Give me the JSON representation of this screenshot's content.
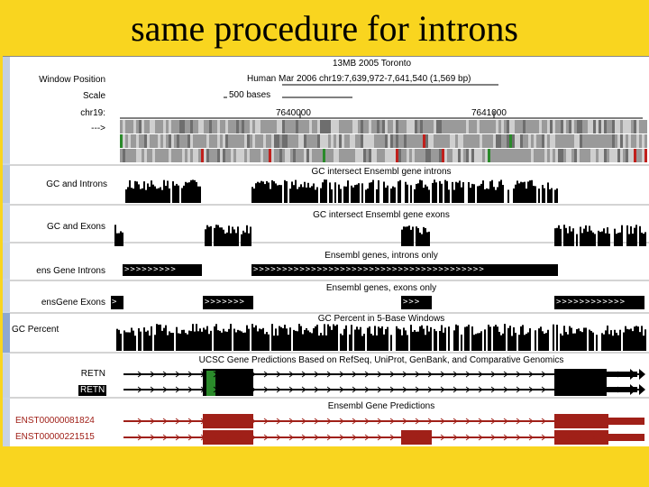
{
  "slide": {
    "title": "same procedure for introns"
  },
  "browser": {
    "header": {
      "assembly_title": "13MB 2005 Toronto",
      "position_text": "Human Mar 2006  chr19:7,639,972-7,641,540 (1,569 bp)",
      "scale_text": "500 bases",
      "coord_left": "7640000",
      "coord_right": "7641000"
    },
    "row_labels": {
      "window_position": "Window Position",
      "scale": "Scale",
      "chromosome": "chr19:",
      "strand": "--->"
    },
    "tracks": [
      {
        "label": "GC and Introns",
        "title": "GC intersect Ensembl gene introns"
      },
      {
        "label": "GC and Exons",
        "title": "GC intersect Ensembl gene exons"
      },
      {
        "label": "ens Gene Introns",
        "title": "Ensembl genes, introns only"
      },
      {
        "label": "ensGene Exons",
        "title": "Ensembl genes, exons only"
      },
      {
        "label": "GC Percent",
        "title": "GC Percent in 5-Base Windows"
      },
      {
        "label": "RETN",
        "title": "UCSC Gene Predictions Based on RefSeq, UniProt, GenBank, and Comparative Genomics"
      },
      {
        "label": "RETN",
        "title": ""
      },
      {
        "label": "ENST00000081824",
        "title": "Ensembl Gene Predictions"
      },
      {
        "label": "ENST00000221515",
        "title": ""
      }
    ],
    "arrow_glyphs": {
      "short": ">>>>>>>>>",
      "long": ">>>>>>>>>>>>>>>>>>>>>>>>>>>>>>>>>>>>>>>>",
      "mid": ">>>>>>>",
      "tiny": ">>>",
      "end": ">>>>>>>>>>>>",
      "chevron": ">"
    },
    "colors": {
      "slide_background": "#f9d51f",
      "track_black": "#000000",
      "ensembl_red": "#a02018",
      "exon_green": "#2a8a2a",
      "conservation_red": "#c0201c"
    }
  }
}
